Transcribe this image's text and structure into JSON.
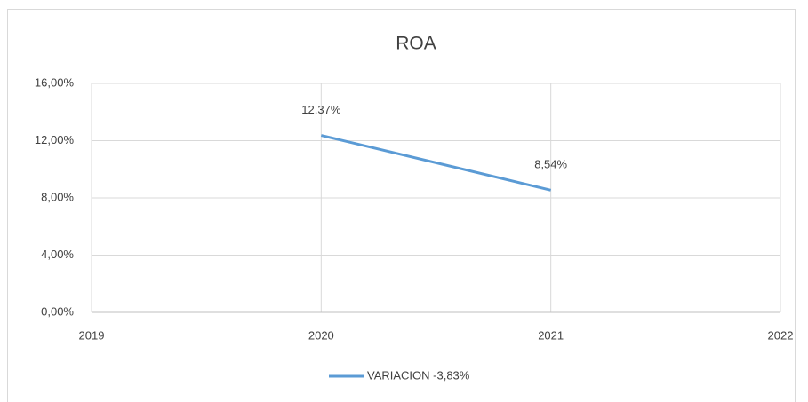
{
  "chart_data": {
    "type": "line",
    "title": "ROA",
    "x": [
      2020,
      2021
    ],
    "series": [
      {
        "name": "VARIACION -3,83%",
        "color": "#5b9bd5",
        "values": [
          12.37,
          8.54
        ],
        "value_labels": [
          "12,37%",
          "8,54%"
        ]
      }
    ],
    "xlim": [
      2019,
      2022
    ],
    "xticks": [
      2019,
      2020,
      2021,
      2022
    ],
    "ylim": [
      0,
      16
    ],
    "yticks": [
      {
        "value": 0,
        "label": "0,00%"
      },
      {
        "value": 4,
        "label": "4,00%"
      },
      {
        "value": 8,
        "label": "8,00%"
      },
      {
        "value": 12,
        "label": "12,00%"
      },
      {
        "value": 16,
        "label": "16,00%"
      }
    ],
    "grid": true,
    "legend": "bottom"
  }
}
